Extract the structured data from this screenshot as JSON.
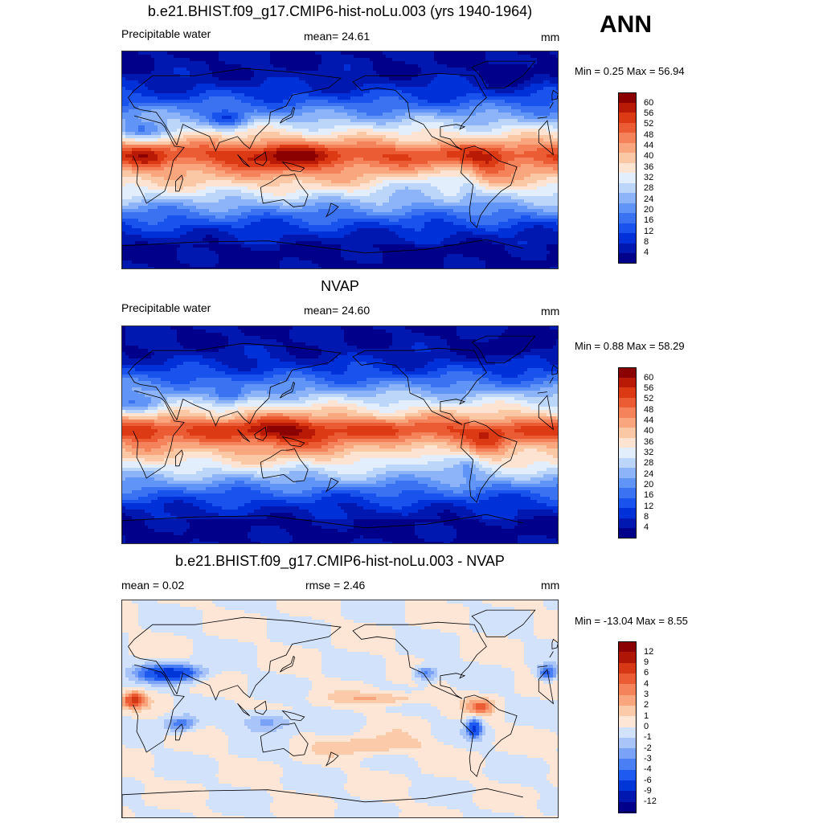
{
  "season": "ANN",
  "colors": {
    "abs_palette": [
      "#00008b",
      "#0018b0",
      "#0030d8",
      "#1a52ee",
      "#3a72f2",
      "#6094f6",
      "#8db4f8",
      "#bcd6fa",
      "#e2eefc",
      "#fde4d2",
      "#fbc8a6",
      "#f9a67e",
      "#f4825a",
      "#ec5c34",
      "#dc3a14",
      "#b81a06",
      "#8b0000"
    ],
    "diff_palette": [
      "#00008b",
      "#0018b0",
      "#0036d8",
      "#1f5af0",
      "#4a7ef4",
      "#7aa2f6",
      "#a8c4f8",
      "#d2e2fb",
      "#fde6d6",
      "#fbcaa8",
      "#f9a67e",
      "#f4825a",
      "#ec5c34",
      "#d63816",
      "#b01606",
      "#8b0000"
    ],
    "land_outline": "#000000"
  },
  "panels": [
    {
      "title": "b.e21.BHIST.f09_g17.CMIP6-hist-noLu.003 (yrs 1940-1964)",
      "left_label": "Precipitable water",
      "center_label": "mean=  24.61",
      "units": "mm",
      "minmax": "Min =   0.25 Max =  56.94",
      "colorbar_ticks": [
        "60",
        "56",
        "52",
        "48",
        "44",
        "40",
        "36",
        "32",
        "28",
        "24",
        "20",
        "16",
        "12",
        "8",
        "4"
      ],
      "map_name": "model-precipitable-water-map"
    },
    {
      "title": "NVAP",
      "left_label": "Precipitable water",
      "center_label": "mean=  24.60",
      "units": "mm",
      "minmax": "Min =   0.88 Max =  58.29",
      "colorbar_ticks": [
        "60",
        "56",
        "52",
        "48",
        "44",
        "40",
        "36",
        "32",
        "28",
        "24",
        "20",
        "16",
        "12",
        "8",
        "4"
      ],
      "map_name": "nvap-precipitable-water-map"
    },
    {
      "title": "b.e21.BHIST.f09_g17.CMIP6-hist-noLu.003 - NVAP",
      "left_label": "mean =   0.02",
      "center_label": "rmse =   2.46",
      "units": "mm",
      "minmax": "Min = -13.04 Max =   8.55",
      "colorbar_ticks": [
        "12",
        "9",
        "6",
        "4",
        "3",
        "2",
        "1",
        "0",
        "-1",
        "-2",
        "-3",
        "-4",
        "-6",
        "-9",
        "-12"
      ],
      "map_name": "difference-map"
    }
  ]
}
